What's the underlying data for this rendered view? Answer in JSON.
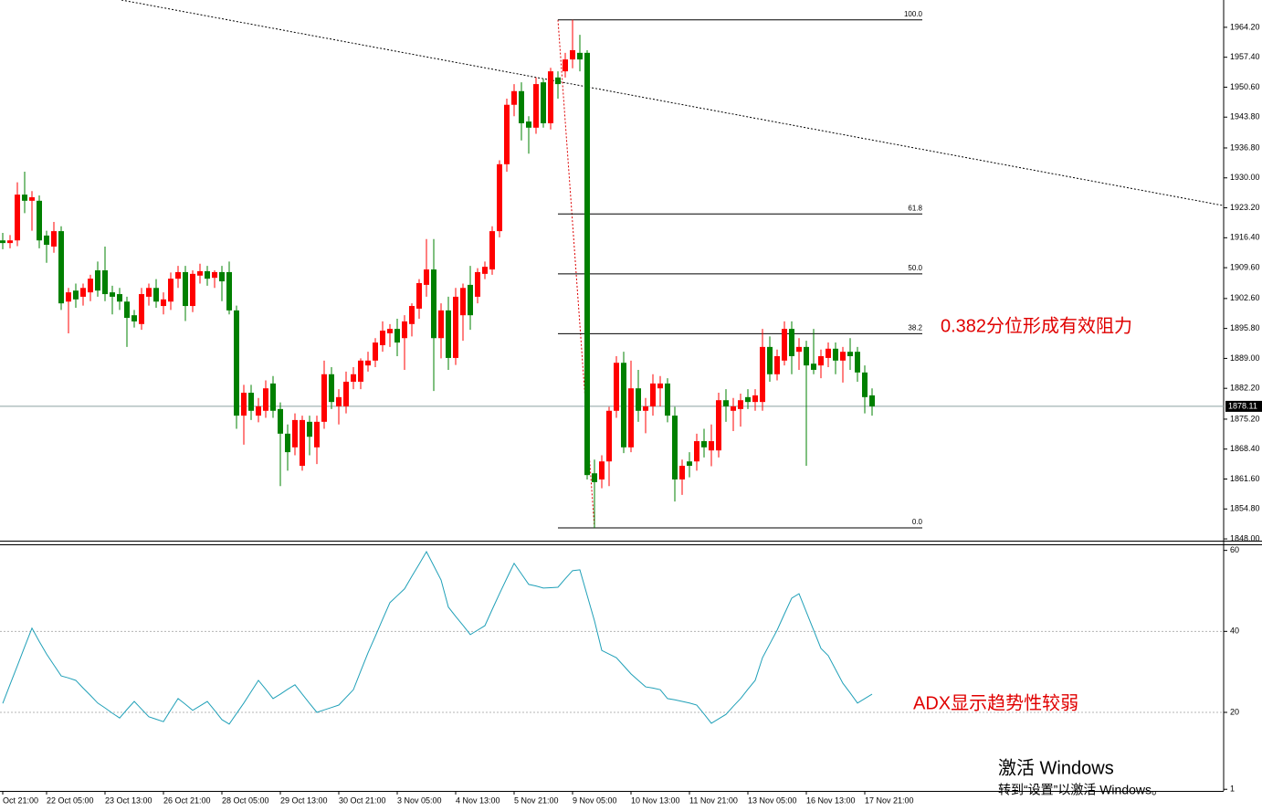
{
  "chart_data": [
    {
      "type": "candlestick",
      "categories": [
        "Oct 21:00",
        null,
        null,
        null,
        null,
        null,
        "22 Oct 05:00",
        null,
        null,
        null,
        null,
        null,
        null,
        null,
        "23 Oct 13:00",
        null,
        null,
        null,
        null,
        null,
        null,
        null,
        "26 Oct 21:00",
        null,
        null,
        null,
        null,
        null,
        null,
        null,
        "28 Oct 05:00",
        null,
        null,
        null,
        null,
        null,
        null,
        null,
        "29 Oct 13:00",
        null,
        null,
        null,
        null,
        null,
        null,
        null,
        "30 Oct 21:00",
        null,
        null,
        null,
        null,
        null,
        null,
        null,
        "3 Nov 05:00",
        null,
        null,
        null,
        null,
        null,
        null,
        null,
        "4 Nov 13:00",
        null,
        null,
        null,
        null,
        null,
        null,
        null,
        "5 Nov 21:00",
        null,
        null,
        null,
        null,
        null,
        null,
        null,
        "9 Nov 05:00",
        null,
        null,
        null,
        null,
        null,
        null,
        null,
        "10 Nov 13:00",
        null,
        null,
        null,
        null,
        null,
        null,
        null,
        "11 Nov 21:00",
        null,
        null,
        null,
        null,
        null,
        null,
        null,
        "13 Nov 05:00",
        null,
        null,
        null,
        null,
        null,
        null,
        null,
        "16 Nov 13:00",
        null,
        null,
        null,
        null,
        null,
        null,
        null,
        "17 Nov 21:00",
        null
      ],
      "open": [
        1915.8,
        1915.2,
        1915.8,
        1926.2,
        1924.8,
        1924.8,
        1916.9,
        1914.4,
        1917.9,
        1901.9,
        1904.4,
        1903.0,
        1904.0,
        1909.0,
        1909.0,
        1904.0,
        1903.6,
        1901.9,
        1898.8,
        1896.8,
        1903.0,
        1905.0,
        1900.9,
        1901.9,
        1907.1,
        1908.6,
        1900.9,
        1907.8,
        1908.8,
        1907.3,
        1908.6,
        1908.6,
        1899.9,
        1876.0,
        1881.2,
        1876.0,
        1877.1,
        1883.3,
        1877.5,
        1871.9,
        1868.8,
        1864.6,
        1874.6,
        1868.8,
        1874.6,
        1885.4,
        1878.1,
        1878.1,
        1883.7,
        1883.7,
        1887.4,
        1888.5,
        1892.0,
        1894.7,
        1895.7,
        1893.6,
        1896.8,
        1900.3,
        1905.7,
        1909.2,
        1893.6,
        1899.9,
        1889.1,
        1898.8,
        1905.7,
        1903.0,
        1908.2,
        1909.2,
        1917.9,
        1933.1,
        1946.6,
        1949.7,
        1942.8,
        1941.4,
        1951.7,
        1942.4,
        1952.8,
        1954.2,
        1956.9,
        1958.4,
        1958.4,
        1862.9,
        1861.5,
        1865.6,
        1877.1,
        1888.0,
        1868.8,
        1882.2,
        1877.1,
        1878.1,
        1882.2,
        1883.3,
        1876.0,
        1861.5,
        1865.6,
        1865.6,
        1870.2,
        1868.1,
        1868.1,
        1879.5,
        1877.1,
        1877.5,
        1880.2,
        1879.1,
        1879.1,
        1891.6,
        1885.4,
        1888.5,
        1895.7,
        1890.5,
        1891.6,
        1887.8,
        1887.4,
        1889.1,
        1891.2,
        1888.5,
        1890.5,
        1890.5,
        1885.8,
        1880.6
      ],
      "high": [
        1917.5,
        1917,
        1929,
        1931.4,
        1927,
        1926,
        1918,
        1920,
        1919,
        1905,
        1906,
        1906,
        1908,
        1911,
        1914.4,
        1905.5,
        1905,
        1903,
        1900,
        1905,
        1906,
        1907,
        1904,
        1908.5,
        1910,
        1910,
        1909,
        1910.5,
        1910,
        1909,
        1910,
        1911,
        1901,
        1883,
        1883,
        1880,
        1884,
        1885,
        1879,
        1874,
        1876.5,
        1876,
        1876,
        1876,
        1888.5,
        1887,
        1882,
        1886,
        1887,
        1889,
        1890.5,
        1893.6,
        1897.4,
        1896.8,
        1898,
        1898.8,
        1901.5,
        1907,
        1916.1,
        1916.1,
        1901.5,
        1903,
        1905,
        1906,
        1910,
        1909.5,
        1911,
        1919,
        1934,
        1948,
        1951.3,
        1951.7,
        1944,
        1952.8,
        1952.5,
        1955,
        1954.2,
        1958.4,
        1965.9,
        1962.5,
        1959.0,
        1866,
        1867,
        1878,
        1889.5,
        1890.5,
        1888.5,
        1886.4,
        1880,
        1885.4,
        1885,
        1884.5,
        1878,
        1866,
        1867.7,
        1871.9,
        1873,
        1874,
        1881.2,
        1882,
        1880,
        1881,
        1882,
        1882,
        1895.7,
        1894,
        1891,
        1897.4,
        1897.4,
        1893.6,
        1893,
        1895.7,
        1891,
        1892.6,
        1892.6,
        1891.6,
        1893.6,
        1891.6,
        1887.4,
        1882.2
      ],
      "low": [
        1913.8,
        1914,
        1914.5,
        1922,
        1918,
        1914,
        1910.7,
        1913,
        1900,
        1894.7,
        1900.5,
        1901,
        1902,
        1903,
        1902,
        1899,
        1900,
        1891.6,
        1896,
        1895.5,
        1901,
        1900.5,
        1899,
        1900,
        1905,
        1897.5,
        1899.5,
        1906,
        1905.5,
        1905,
        1902,
        1899,
        1873,
        1869.4,
        1875,
        1874.5,
        1875.5,
        1875.5,
        1860.0,
        1863.5,
        1867,
        1863.5,
        1867,
        1865,
        1873,
        1877.5,
        1874,
        1876.5,
        1882,
        1882,
        1886,
        1887,
        1890.5,
        1891.6,
        1889.5,
        1886.4,
        1894,
        1898,
        1903,
        1881.6,
        1889,
        1886.4,
        1887.5,
        1893,
        1895.5,
        1901.5,
        1907,
        1908,
        1916.5,
        1931.4,
        1944,
        1938.5,
        1935.5,
        1940,
        1941.4,
        1941,
        1948,
        1952.8,
        1954.9,
        1954.2,
        1861.5,
        1850.5,
        1859.5,
        1860,
        1875.5,
        1867.5,
        1867.7,
        1874.6,
        1872,
        1876,
        1878.1,
        1874.5,
        1856.5,
        1858,
        1862,
        1863.5,
        1866.5,
        1864.5,
        1866.5,
        1874.6,
        1872.5,
        1873.5,
        1877.5,
        1877.1,
        1877.1,
        1883.7,
        1884,
        1887.4,
        1885.4,
        1886.4,
        1864.6,
        1885.4,
        1884.5,
        1887,
        1885.4,
        1883.5,
        1886.4,
        1883.7,
        1876.5,
        1876.0
      ],
      "close": [
        1915.2,
        1915.8,
        1926.2,
        1924.8,
        1925.6,
        1915.8,
        1914.8,
        1917.9,
        1901.5,
        1904.0,
        1902.4,
        1905.0,
        1907.1,
        1904.4,
        1903.6,
        1903.0,
        1901.9,
        1898.2,
        1897.4,
        1903.6,
        1905.0,
        1901.9,
        1902.4,
        1907.1,
        1908.6,
        1900.9,
        1908.2,
        1908.8,
        1907.1,
        1908.6,
        1906.5,
        1899.9,
        1876.0,
        1881.2,
        1877.1,
        1878.1,
        1882.2,
        1877.1,
        1871.9,
        1867.7,
        1875.0,
        1875.0,
        1871.2,
        1874.6,
        1885.4,
        1879.1,
        1880.2,
        1883.7,
        1885.4,
        1888.5,
        1888.5,
        1892.6,
        1895.3,
        1895.7,
        1892.6,
        1897.4,
        1900.9,
        1906.1,
        1909.2,
        1893.6,
        1899.9,
        1889.1,
        1903.0,
        1905.0,
        1898.8,
        1908.6,
        1909.8,
        1917.9,
        1933.1,
        1946.6,
        1949.7,
        1942.4,
        1941.4,
        1951.3,
        1942.4,
        1954.2,
        1951.3,
        1956.9,
        1959.0,
        1956.9,
        1862.5,
        1860.9,
        1865.6,
        1877.1,
        1888.0,
        1868.8,
        1882.2,
        1877.1,
        1878.1,
        1883.3,
        1883.3,
        1876.0,
        1861.5,
        1864.6,
        1864.6,
        1870.2,
        1868.8,
        1870.2,
        1879.5,
        1878.1,
        1878.1,
        1879.5,
        1879.1,
        1880.6,
        1891.6,
        1885.4,
        1889.5,
        1895.7,
        1889.5,
        1891.6,
        1887.4,
        1886.4,
        1889.5,
        1891.2,
        1888.5,
        1890.5,
        1889.5,
        1885.8,
        1880.2,
        1878.1
      ],
      "up_color": "#ff0000",
      "down_color": "#008000",
      "ylim": [
        1847.6,
        1970.4
      ],
      "yticks": [
        {
          "value": 1964.2,
          "label": "1964.20"
        },
        {
          "value": 1957.4,
          "label": "1957.40"
        },
        {
          "value": 1950.6,
          "label": "1950.60"
        },
        {
          "value": 1943.8,
          "label": "1943.80"
        },
        {
          "value": 1936.8,
          "label": "1936.80"
        },
        {
          "value": 1930,
          "label": "1930.00"
        },
        {
          "value": 1923.2,
          "label": "1923.20"
        },
        {
          "value": 1916.4,
          "label": "1916.40"
        },
        {
          "value": 1909.6,
          "label": "1909.60"
        },
        {
          "value": 1902.6,
          "label": "1902.60"
        },
        {
          "value": 1895.8,
          "label": "1895.80"
        },
        {
          "value": 1889,
          "label": "1889.00"
        },
        {
          "value": 1882.2,
          "label": "1882.20"
        },
        {
          "value": 1875.2,
          "label": "1875.20"
        },
        {
          "value": 1868.4,
          "label": "1868.40"
        },
        {
          "value": 1861.6,
          "label": "1861.60"
        },
        {
          "value": 1854.8,
          "label": "1854.80"
        },
        {
          "value": 1848,
          "label": "1848.00"
        }
      ],
      "last_price": 1878.11,
      "fibonacci": [
        {
          "value": 1965.9,
          "label": "100.0"
        },
        {
          "value": 1921.8,
          "label": "61.8"
        },
        {
          "value": 1908.2,
          "label": "50.0"
        },
        {
          "value": 1894.6,
          "label": "38.2"
        },
        {
          "value": 1850.5,
          "label": "0.0"
        }
      ],
      "trendline": [
        1970.4,
        1923.7
      ],
      "annotation": "0.382分位形成有效阻力"
    },
    {
      "type": "line",
      "values": [
        22.2,
        26.9,
        31.5,
        36.2,
        40.8,
        37.5,
        34.4,
        31.7,
        29.0,
        28.5,
        27.9,
        26.0,
        24.2,
        22.3,
        21.1,
        19.8,
        18.6,
        20.7,
        22.7,
        20.8,
        18.9,
        18.3,
        17.7,
        20.6,
        23.4,
        22.0,
        20.5,
        21.6,
        22.7,
        20.5,
        18.2,
        17.1,
        19.7,
        22.3,
        25.1,
        27.9,
        25.7,
        23.4,
        24.5,
        25.7,
        26.8,
        24.5,
        22.2,
        20.0,
        20.6,
        21.2,
        21.8,
        23.7,
        25.6,
        30.2,
        34.7,
        38.8,
        43.0,
        47.1,
        48.8,
        50.5,
        53.6,
        56.6,
        59.7,
        56.2,
        52.7,
        46.0,
        43.7,
        41.5,
        39.2,
        40.3,
        41.4,
        45.4,
        49.3,
        53.1,
        56.8,
        54.2,
        51.6,
        51.2,
        50.7,
        50.8,
        50.9,
        53.0,
        55.0,
        55.2,
        48.9,
        42.6,
        35.3,
        34.4,
        33.5,
        31.5,
        29.5,
        27.9,
        26.3,
        26.0,
        25.6,
        23.4,
        23.1,
        22.7,
        22.3,
        21.8,
        19.6,
        17.3,
        18.4,
        19.5,
        21.5,
        23.4,
        25.7,
        27.9,
        33.5,
        36.9,
        40.3,
        44.3,
        48.2,
        49.3,
        44.8,
        40.3,
        35.8,
        34.0,
        30.6,
        27.2,
        24.8,
        22.3,
        23.4,
        24.5
      ],
      "color": "#20a0b8",
      "ylim": [
        0.6,
        61.5
      ],
      "yticks": [
        60,
        40,
        20,
        1
      ],
      "grid_ticks": [
        40,
        20
      ],
      "annotation": "ADX显示趋势性较弱"
    }
  ],
  "watermark": {
    "title": "激活 Windows",
    "subtitle": "转到“设置”以激活 Windows。"
  }
}
